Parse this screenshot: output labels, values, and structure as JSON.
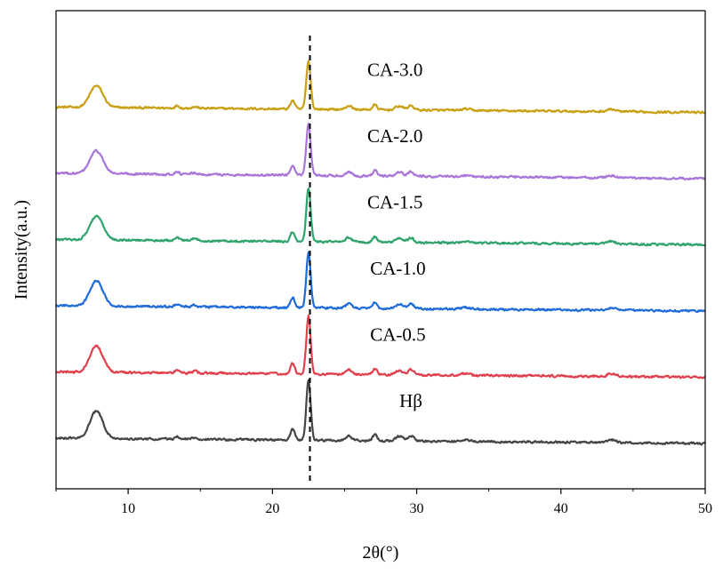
{
  "chart_data": {
    "type": "line",
    "title": "",
    "xlabel": "2θ(°)",
    "ylabel": "Intensity(a.u.)",
    "xlim": [
      5,
      50
    ],
    "xticks": [
      10,
      20,
      30,
      40,
      50
    ],
    "yticks_shown": false,
    "grid": false,
    "legend": "none",
    "reference_line": {
      "x": 22.6,
      "style": "dashed",
      "color": "#000000"
    },
    "peaks": [
      {
        "x": 7.8,
        "h": 0.45,
        "w": 0.45
      },
      {
        "x": 13.4,
        "h": 0.05,
        "w": 0.15
      },
      {
        "x": 14.6,
        "h": 0.03,
        "w": 0.2
      },
      {
        "x": 21.4,
        "h": 0.18,
        "w": 0.15
      },
      {
        "x": 22.5,
        "h": 1.0,
        "w": 0.15
      },
      {
        "x": 25.3,
        "h": 0.08,
        "w": 0.2
      },
      {
        "x": 27.1,
        "h": 0.1,
        "w": 0.15
      },
      {
        "x": 28.8,
        "h": 0.08,
        "w": 0.25
      },
      {
        "x": 29.6,
        "h": 0.09,
        "w": 0.2
      },
      {
        "x": 33.4,
        "h": 0.03,
        "w": 0.3
      },
      {
        "x": 43.5,
        "h": 0.05,
        "w": 0.3
      }
    ],
    "series": [
      {
        "name": "CA-3.0",
        "color": "#C9A013",
        "offset": 5,
        "label_x": 28.5
      },
      {
        "name": "CA-2.0",
        "color": "#A875D9",
        "offset": 4,
        "label_x": 28.5
      },
      {
        "name": "CA-1.5",
        "color": "#2FA36B",
        "offset": 3,
        "label_x": 28.5
      },
      {
        "name": "CA-1.0",
        "color": "#1F6BD8",
        "offset": 2,
        "label_x": 28.7
      },
      {
        "name": "CA-0.5",
        "color": "#E0404C",
        "offset": 1,
        "label_x": 28.7
      },
      {
        "name": "Hβ",
        "color": "#454545",
        "offset": 0,
        "label_x": 29.6
      }
    ]
  }
}
